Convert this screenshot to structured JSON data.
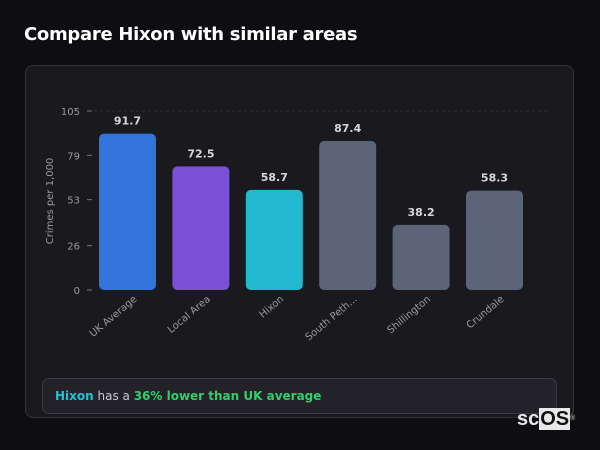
{
  "header": {
    "title": "Compare Hixon with similar areas"
  },
  "chart_data": {
    "type": "bar",
    "categories": [
      "UK Average",
      "Local Area",
      "Hixon",
      "South Peth...",
      "Shillington",
      "Crundale"
    ],
    "values": [
      91.7,
      72.5,
      58.7,
      87.4,
      38.2,
      58.3
    ],
    "value_labels": [
      "91.7",
      "72.5",
      "58.7",
      "87.4",
      "38.2",
      "58.3"
    ],
    "colors": [
      "#3273dc",
      "#7b4fd6",
      "#22b8cf",
      "#5b6577",
      "#5b6577",
      "#5b6577"
    ],
    "ylabel": "Crimes per 1,000",
    "xlabel": "",
    "ylim": [
      0,
      105
    ],
    "yticks": [
      0,
      26,
      53,
      79,
      105
    ],
    "grid": "top dashed line only",
    "legend": "none"
  },
  "footer": {
    "place": "Hixon",
    "middle": " has a ",
    "highlight": "36% lower than UK average"
  },
  "logo": {
    "text": "scOS"
  }
}
